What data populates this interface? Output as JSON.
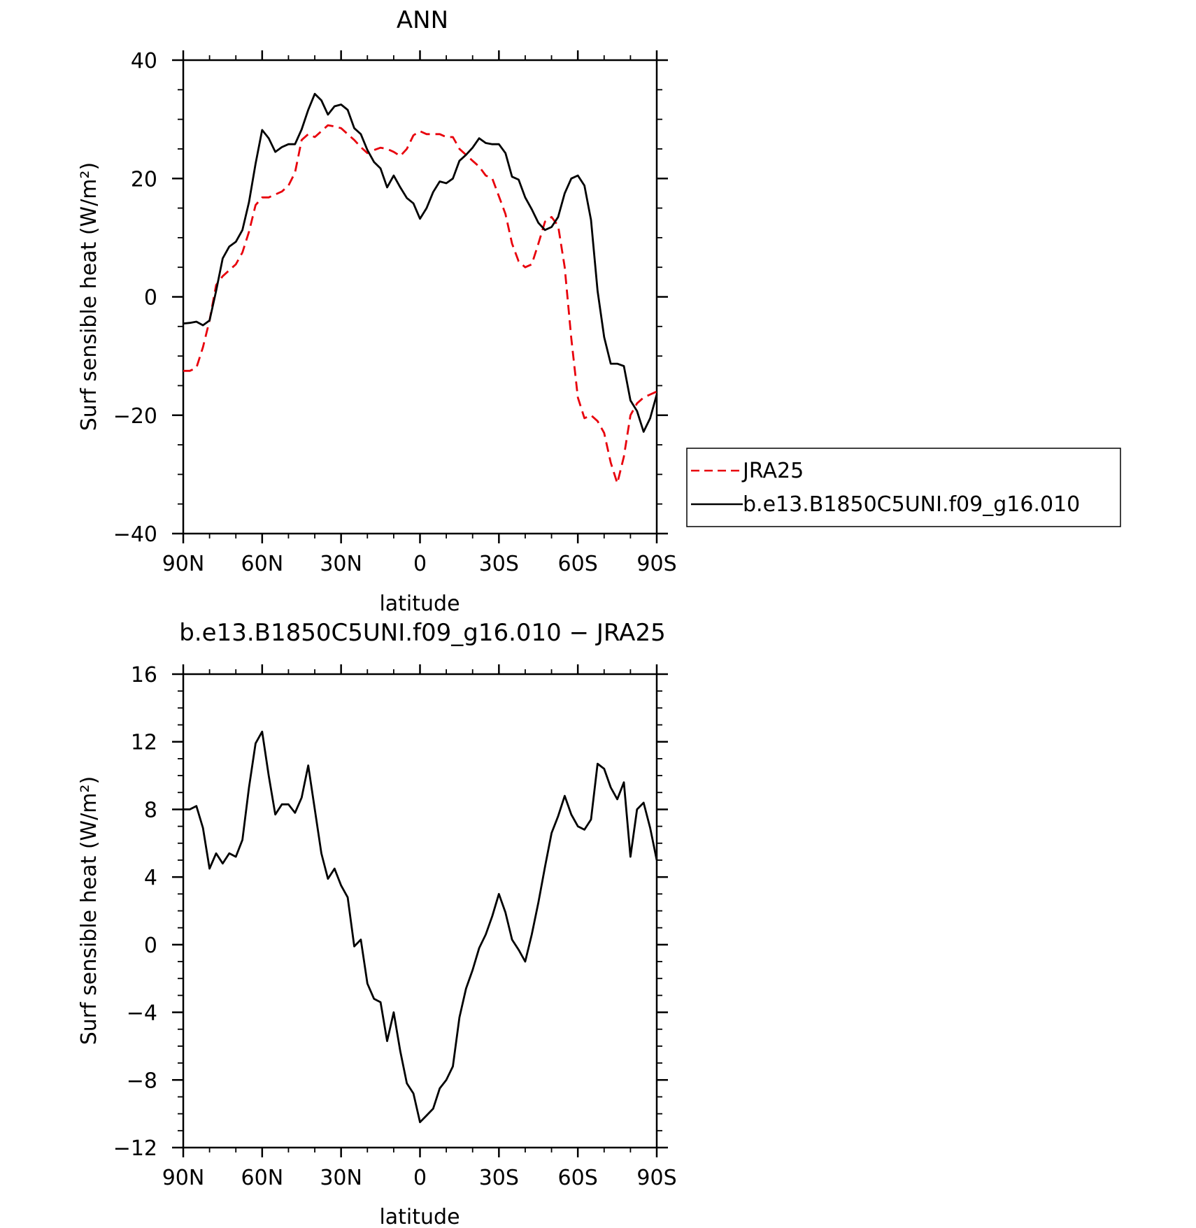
{
  "chart_data": [
    {
      "type": "line",
      "title": "ANN",
      "xlabel": "latitude",
      "ylabel": "Surf sensible heat (W/m²)",
      "xlim": [
        90,
        -90
      ],
      "ylim": [
        -40,
        40
      ],
      "x_tick_values": [
        90,
        60,
        30,
        0,
        -30,
        -60,
        -90
      ],
      "x_tick_labels": [
        "90N",
        "60N",
        "30N",
        "0",
        "30S",
        "60S",
        "90S"
      ],
      "y_tick_values": [
        -40,
        -20,
        0,
        20,
        40
      ],
      "y_tick_labels": [
        "−40",
        "−20",
        "0",
        "20",
        "40"
      ],
      "grid": false,
      "legend_position": "right",
      "x": [
        90,
        87.5,
        85,
        82.5,
        80,
        77.5,
        75,
        72.5,
        70,
        67.5,
        65,
        62.5,
        60,
        57.5,
        55,
        52.5,
        50,
        47.5,
        45,
        42.5,
        40,
        37.5,
        35,
        32.5,
        30,
        27.5,
        25,
        22.5,
        20,
        17.5,
        15,
        12.5,
        10,
        7.5,
        5,
        2.5,
        0,
        -2.5,
        -5,
        -7.5,
        -10,
        -12.5,
        -15,
        -17.5,
        -20,
        -22.5,
        -25,
        -27.5,
        -30,
        -32.5,
        -35,
        -37.5,
        -40,
        -42.5,
        -45,
        -47.5,
        -50,
        -52.5,
        -55,
        -57.5,
        -60,
        -62.5,
        -65,
        -67.5,
        -70,
        -72.5,
        -75,
        -77.5,
        -80,
        -82.5,
        -85,
        -87.5,
        -90
      ],
      "series": [
        {
          "name": "JRA25",
          "color": "#e8000b",
          "dash": "dashed",
          "values": [
            -12.5,
            -12.5,
            -12,
            -8.5,
            -4,
            2,
            3.5,
            4.5,
            5.5,
            7.5,
            11,
            15.5,
            16.8,
            16.8,
            17.3,
            17.8,
            18.8,
            21,
            26.5,
            27.5,
            27,
            28,
            29,
            28.8,
            28.5,
            27.5,
            26.5,
            25.3,
            24.3,
            24.8,
            25.2,
            25,
            24.5,
            23.8,
            25,
            27.3,
            28,
            27.5,
            27.5,
            27.5,
            27,
            27,
            25,
            24,
            23,
            22,
            20.5,
            20,
            17,
            14,
            9,
            6,
            5,
            5.5,
            9,
            12.7,
            13.5,
            12,
            5,
            -7,
            -17,
            -20.5,
            -20,
            -21,
            -23,
            -28,
            -31.5,
            -27,
            -20,
            -18,
            -17,
            -16.5,
            -16
          ]
        },
        {
          "name": "b.e13.B1850C5UNI.f09_g16.010",
          "color": "#000000",
          "dash": "solid",
          "values": [
            -4.5,
            -4.4,
            -4.2,
            -4.8,
            -4,
            1,
            6.5,
            8.5,
            9.3,
            11.3,
            16,
            22.5,
            28.2,
            26.8,
            24.5,
            25.3,
            25.8,
            25.8,
            28.3,
            31.6,
            34.3,
            33.2,
            30.8,
            32.2,
            32.5,
            31.6,
            28.5,
            27.5,
            24.8,
            22.8,
            21.7,
            18.5,
            20.5,
            18.5,
            16.7,
            15.8,
            13.2,
            15,
            17.7,
            19.5,
            19.2,
            20,
            23,
            24,
            25.2,
            26.8,
            26,
            25.8,
            25.8,
            24.3,
            20.3,
            19.8,
            16.8,
            14.8,
            12.5,
            11.3,
            11.8,
            13.5,
            17.5,
            20,
            20.5,
            18.8,
            13,
            1,
            -6.8,
            -11.3,
            -11.3,
            -11.7,
            -17.5,
            -19.3,
            -22.8,
            -20.5,
            -16.5
          ]
        }
      ]
    },
    {
      "type": "line",
      "title": "b.e13.B1850C5UNI.f09_g16.010 − JRA25",
      "xlabel": "latitude",
      "ylabel": "Surf sensible heat (W/m²)",
      "xlim": [
        90,
        -90
      ],
      "ylim": [
        -12,
        16
      ],
      "x_tick_values": [
        90,
        60,
        30,
        0,
        -30,
        -60,
        -90
      ],
      "x_tick_labels": [
        "90N",
        "60N",
        "30N",
        "0",
        "30S",
        "60S",
        "90S"
      ],
      "y_tick_values": [
        -12,
        -8,
        -4,
        0,
        4,
        8,
        12,
        16
      ],
      "y_tick_labels": [
        "−12",
        "−8",
        "−4",
        "0",
        "4",
        "8",
        "12",
        "16"
      ],
      "grid": false,
      "x": [
        90,
        87.5,
        85,
        82.5,
        80,
        77.5,
        75,
        72.5,
        70,
        67.5,
        65,
        62.5,
        60,
        57.5,
        55,
        52.5,
        50,
        47.5,
        45,
        42.5,
        40,
        37.5,
        35,
        32.5,
        30,
        27.5,
        25,
        22.5,
        20,
        17.5,
        15,
        12.5,
        10,
        7.5,
        5,
        2.5,
        0,
        -2.5,
        -5,
        -7.5,
        -10,
        -12.5,
        -15,
        -17.5,
        -20,
        -22.5,
        -25,
        -27.5,
        -30,
        -32.5,
        -35,
        -37.5,
        -40,
        -42.5,
        -45,
        -47.5,
        -50,
        -52.5,
        -55,
        -57.5,
        -60,
        -62.5,
        -65,
        -67.5,
        -70,
        -72.5,
        -75,
        -77.5,
        -80,
        -82.5,
        -85,
        -87.5,
        -90
      ],
      "series": [
        {
          "name": "",
          "color": "#000000",
          "dash": "solid",
          "values": [
            8,
            8,
            8.2,
            6.9,
            4.5,
            5.4,
            4.8,
            5.4,
            5.2,
            6.2,
            9.3,
            11.9,
            12.6,
            10,
            7.7,
            8.3,
            8.3,
            7.8,
            8.7,
            10.6,
            8,
            5.4,
            3.9,
            4.5,
            3.5,
            2.8,
            -0.1,
            0.3,
            -2.3,
            -3.2,
            -3.4,
            -5.7,
            -4,
            -6.3,
            -8.2,
            -8.8,
            -10.5,
            -10.1,
            -9.7,
            -8.5,
            -8,
            -7.2,
            -4.3,
            -2.6,
            -1.5,
            -0.2,
            0.6,
            1.7,
            3,
            1.9,
            0.3,
            -0.3,
            -1,
            0.6,
            2.5,
            4.6,
            6.6,
            7.6,
            8.8,
            7.7,
            7,
            6.8,
            7.4,
            10.7,
            10.4,
            9.3,
            8.6,
            9.6,
            5.2,
            8,
            8.4,
            6.9,
            5
          ]
        }
      ]
    }
  ]
}
